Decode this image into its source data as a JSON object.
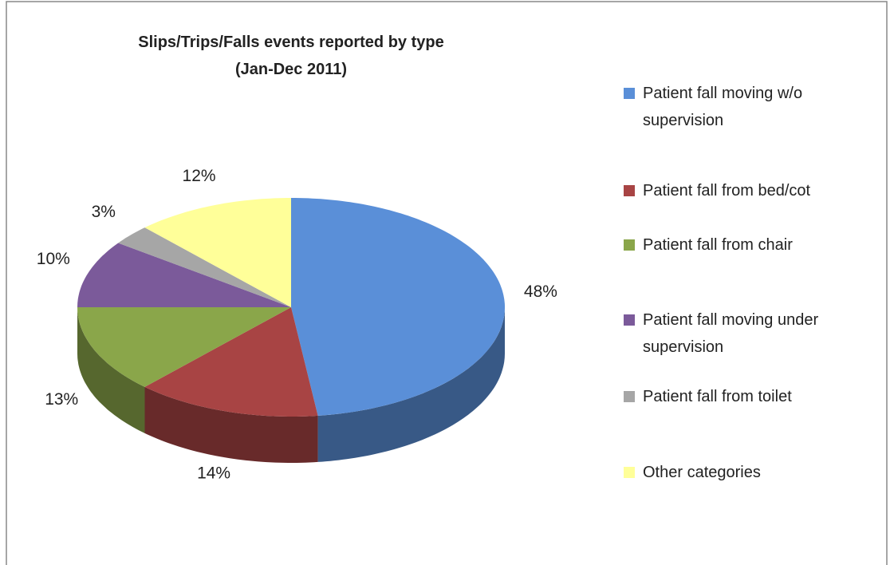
{
  "chart_data": {
    "type": "pie",
    "title": "Slips/Trips/Falls events reported by type\n(Jan-Dec 2011)",
    "categories": [
      "Patient fall moving w/o supervision",
      "Patient fall from bed/cot",
      "Patient fall from chair",
      "Patient fall moving under supervision",
      "Patient fall from toilet",
      "Other categories"
    ],
    "values": [
      48,
      14,
      13,
      10,
      3,
      12
    ],
    "value_labels": [
      "48%",
      "14%",
      "13%",
      "10%",
      "3%",
      "12%"
    ],
    "colors": [
      "#5a8fd8",
      "#a84444",
      "#8aa64a",
      "#7b5a9a",
      "#a6a6a6",
      "#ffff99"
    ],
    "legend": "right"
  }
}
